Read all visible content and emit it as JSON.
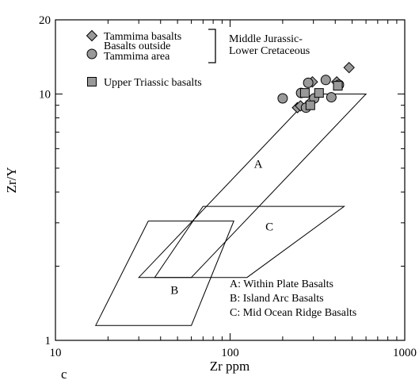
{
  "chart_data": {
    "type": "scatter",
    "panel_label": "c",
    "xlabel": "Zr ppm",
    "ylabel": "Zr/Y",
    "xscale": "log",
    "yscale": "log",
    "xlim": [
      10,
      1000
    ],
    "ylim": [
      1,
      20
    ],
    "x_ticks": [
      {
        "value": 10,
        "label": "10"
      },
      {
        "value": 100,
        "label": "100"
      },
      {
        "value": 1000,
        "label": "1000"
      }
    ],
    "y_ticks": [
      {
        "value": 1,
        "label": "1"
      },
      {
        "value": 10,
        "label": "10"
      },
      {
        "value": 20,
        "label": "20"
      }
    ],
    "grid": false,
    "legend": {
      "placement": "top-left",
      "entries": [
        {
          "marker": "diamond",
          "color": "#999999",
          "lines": [
            "Tammima basalts"
          ]
        },
        {
          "marker": "circle",
          "color": "#999999",
          "lines": [
            "Basalts outside",
            "Tammima area"
          ]
        },
        {
          "marker": "square",
          "color": "#999999",
          "lines": [
            "Upper Triassic basalts"
          ]
        }
      ],
      "bracket_label_lines": [
        "Middle Jurassic-",
        "Lower Cretaceous"
      ]
    },
    "fields": [
      {
        "id": "A",
        "label": "A",
        "name": "Within Plate Basalts",
        "polygon": [
          [
            60,
            1.8
          ],
          [
            600,
            10
          ],
          [
            300,
            10
          ],
          [
            30,
            1.8
          ]
        ],
        "label_at": [
          145,
          5.2
        ]
      },
      {
        "id": "B",
        "label": "B",
        "name": "Island Arc Basalts",
        "polygon": [
          [
            17,
            1.15
          ],
          [
            60,
            1.15
          ],
          [
            105,
            3.05
          ],
          [
            34,
            3.05
          ]
        ],
        "label_at": [
          48,
          1.6
        ]
      },
      {
        "id": "C",
        "label": "C",
        "name": "Mid Ocean Ridge Basalts",
        "polygon": [
          [
            37,
            1.8
          ],
          [
            125,
            1.8
          ],
          [
            450,
            3.5
          ],
          [
            70,
            3.5
          ]
        ],
        "label_at": [
          168,
          2.9
        ]
      }
    ],
    "field_key": [
      "A: Within Plate Basalts",
      "B: Island Arc Basalts",
      "C: Mid Ocean Ridge Basalts"
    ],
    "series": [
      {
        "name": "Tammima basalts",
        "marker": "diamond",
        "color": "#999999",
        "points": [
          [
            480,
            12.8
          ],
          [
            243,
            8.8
          ],
          [
            296,
            11.2
          ],
          [
            408,
            11.2
          ],
          [
            253,
            8.95
          ]
        ]
      },
      {
        "name": "Basalts outside Tammima area",
        "marker": "circle",
        "color": "#999999",
        "points": [
          [
            200,
            9.6
          ],
          [
            255,
            10.1
          ],
          [
            280,
            11.1
          ],
          [
            303,
            9.6
          ],
          [
            272,
            8.8
          ],
          [
            353,
            11.4
          ],
          [
            380,
            9.7
          ],
          [
            420,
            10.9
          ]
        ]
      },
      {
        "name": "Upper Triassic basalts",
        "marker": "square",
        "color": "#999999",
        "points": [
          [
            268,
            10.1
          ],
          [
            323,
            10.1
          ],
          [
            414,
            10.8
          ],
          [
            288,
            9.0
          ]
        ]
      }
    ]
  }
}
